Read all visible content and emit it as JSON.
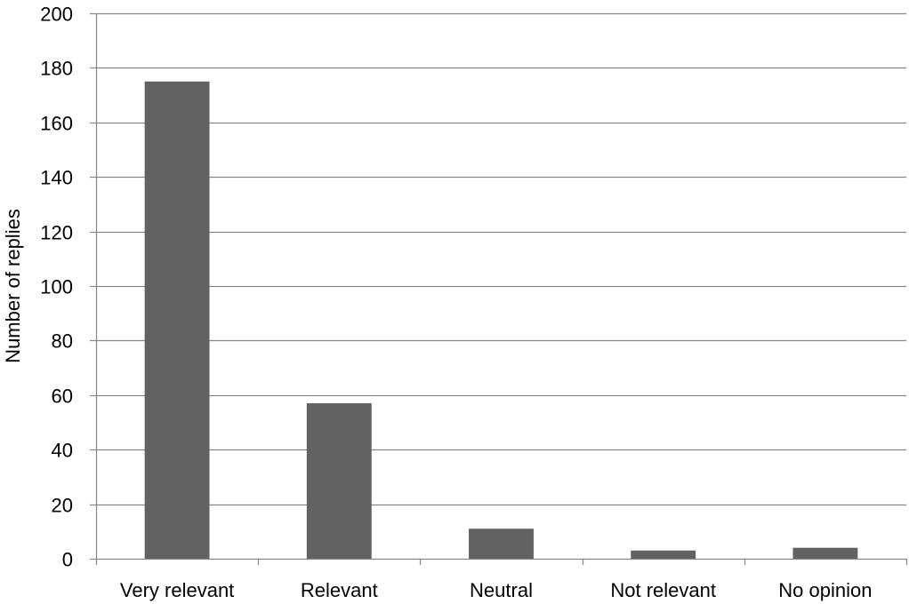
{
  "chart_data": {
    "type": "bar",
    "title": "",
    "xlabel": "",
    "ylabel": "Number of replies",
    "categories": [
      "Very relevant",
      "Relevant",
      "Neutral",
      "Not relevant",
      "No opinion"
    ],
    "values": [
      175,
      57,
      11,
      3,
      4
    ],
    "ylim": [
      0,
      200
    ],
    "yticks": [
      0,
      20,
      40,
      60,
      80,
      100,
      120,
      140,
      160,
      180,
      200
    ],
    "grid": true,
    "legend": "none",
    "bar_color": "#626262",
    "grid_color": "#868686",
    "axis_color": "#868686"
  }
}
